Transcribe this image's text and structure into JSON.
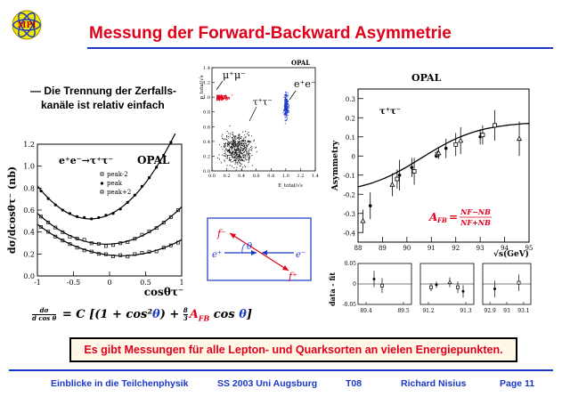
{
  "logo": {
    "text": "MPI",
    "icon": "atom-logo-icon"
  },
  "title": "Messung der Forward-Backward Asymmetrie",
  "bullet": {
    "dash": "—",
    "line1": "Die Trennung der Zerfalls-",
    "line2": "kanäle ist relativ einfach"
  },
  "angular_plot": {
    "label": "OPAL",
    "process": "e⁺e⁻→τ⁺τ⁻",
    "ylabel": "dσ/dcosθτ⁻ (nb)",
    "xlabel": "cosθτ⁻",
    "legend": [
      "peak-2",
      "peak",
      "peak+2"
    ],
    "xticks": [
      "-1",
      "-0.5",
      "0",
      "0.5",
      "1"
    ],
    "yticks": [
      "0.0",
      "0.2",
      "0.4",
      "0.6",
      "0.8",
      "1.0",
      "1.2"
    ]
  },
  "scatter_plot": {
    "label": "OPAL",
    "ylabel": "p_total/√s",
    "xlabel": "E_total/√s",
    "region_mumu": "μ⁺μ⁻",
    "region_tautau": "τ⁺τ⁻",
    "region_ee": "e⁺e⁻",
    "xticks": [
      "0.0",
      "0.2",
      "0.4",
      "0.6",
      "0.8",
      "1.0",
      "1.2",
      "1.4"
    ],
    "yticks": [
      "0.0",
      "0.2",
      "0.4",
      "0.6",
      "0.8",
      "1.0",
      "1.2",
      "1.4"
    ]
  },
  "diagram": {
    "f_minus": "f⁻",
    "f_plus": "f⁺",
    "e_plus": "e⁺",
    "e_minus": "e⁻",
    "theta": "θ"
  },
  "asymmetry_plot": {
    "label": "OPAL",
    "channel": "τ⁺τ⁻",
    "ylabel": "Asymmetry",
    "xlabel": "√s(GeV)",
    "xticks": [
      "88",
      "89",
      "90",
      "91",
      "92",
      "93",
      "94",
      "95"
    ],
    "yticks": [
      "-0.4",
      "-0.3",
      "-0.2",
      "-0.1",
      "0",
      "0.1",
      "0.2",
      "0.3"
    ],
    "formula": {
      "lhs": "A",
      "sub": "FB",
      "num": "NF−NB",
      "den": "NF+NB"
    }
  },
  "residual_plot": {
    "ylabel": "data - fit",
    "yticks": [
      "0.05",
      "0",
      "-0.05"
    ],
    "panels": [
      {
        "xticks": [
          "89.4",
          "89.5"
        ]
      },
      {
        "xticks": [
          "91.2",
          "91.3"
        ]
      },
      {
        "xticks": [
          "92.9",
          "93",
          "93.1"
        ]
      }
    ]
  },
  "formula": {
    "num": "dσ",
    "den": "d cos θ",
    "text1": " = C [(1 + cos²",
    "theta": "θ",
    "text2": ") + ",
    "frac_num": "8",
    "frac_den": "3",
    "afb": "A",
    "afb_sub": "FB",
    "text3": " cos ",
    "close": "]"
  },
  "banner": "Es gibt Messungen für alle Lepton- und Quarksorten an vielen Energiepunkten.",
  "footer": {
    "course": "Einblicke in die Teilchenphysik",
    "term": "SS 2003 Uni Augsburg",
    "code": "T08",
    "author": "Richard Nisius",
    "page": "Page 11"
  },
  "colors": {
    "title": "#e1001a",
    "rule": "#1a37c8",
    "banner_text": "#e1001a",
    "mumu": "#e1001a",
    "ee": "#1a37c8"
  }
}
